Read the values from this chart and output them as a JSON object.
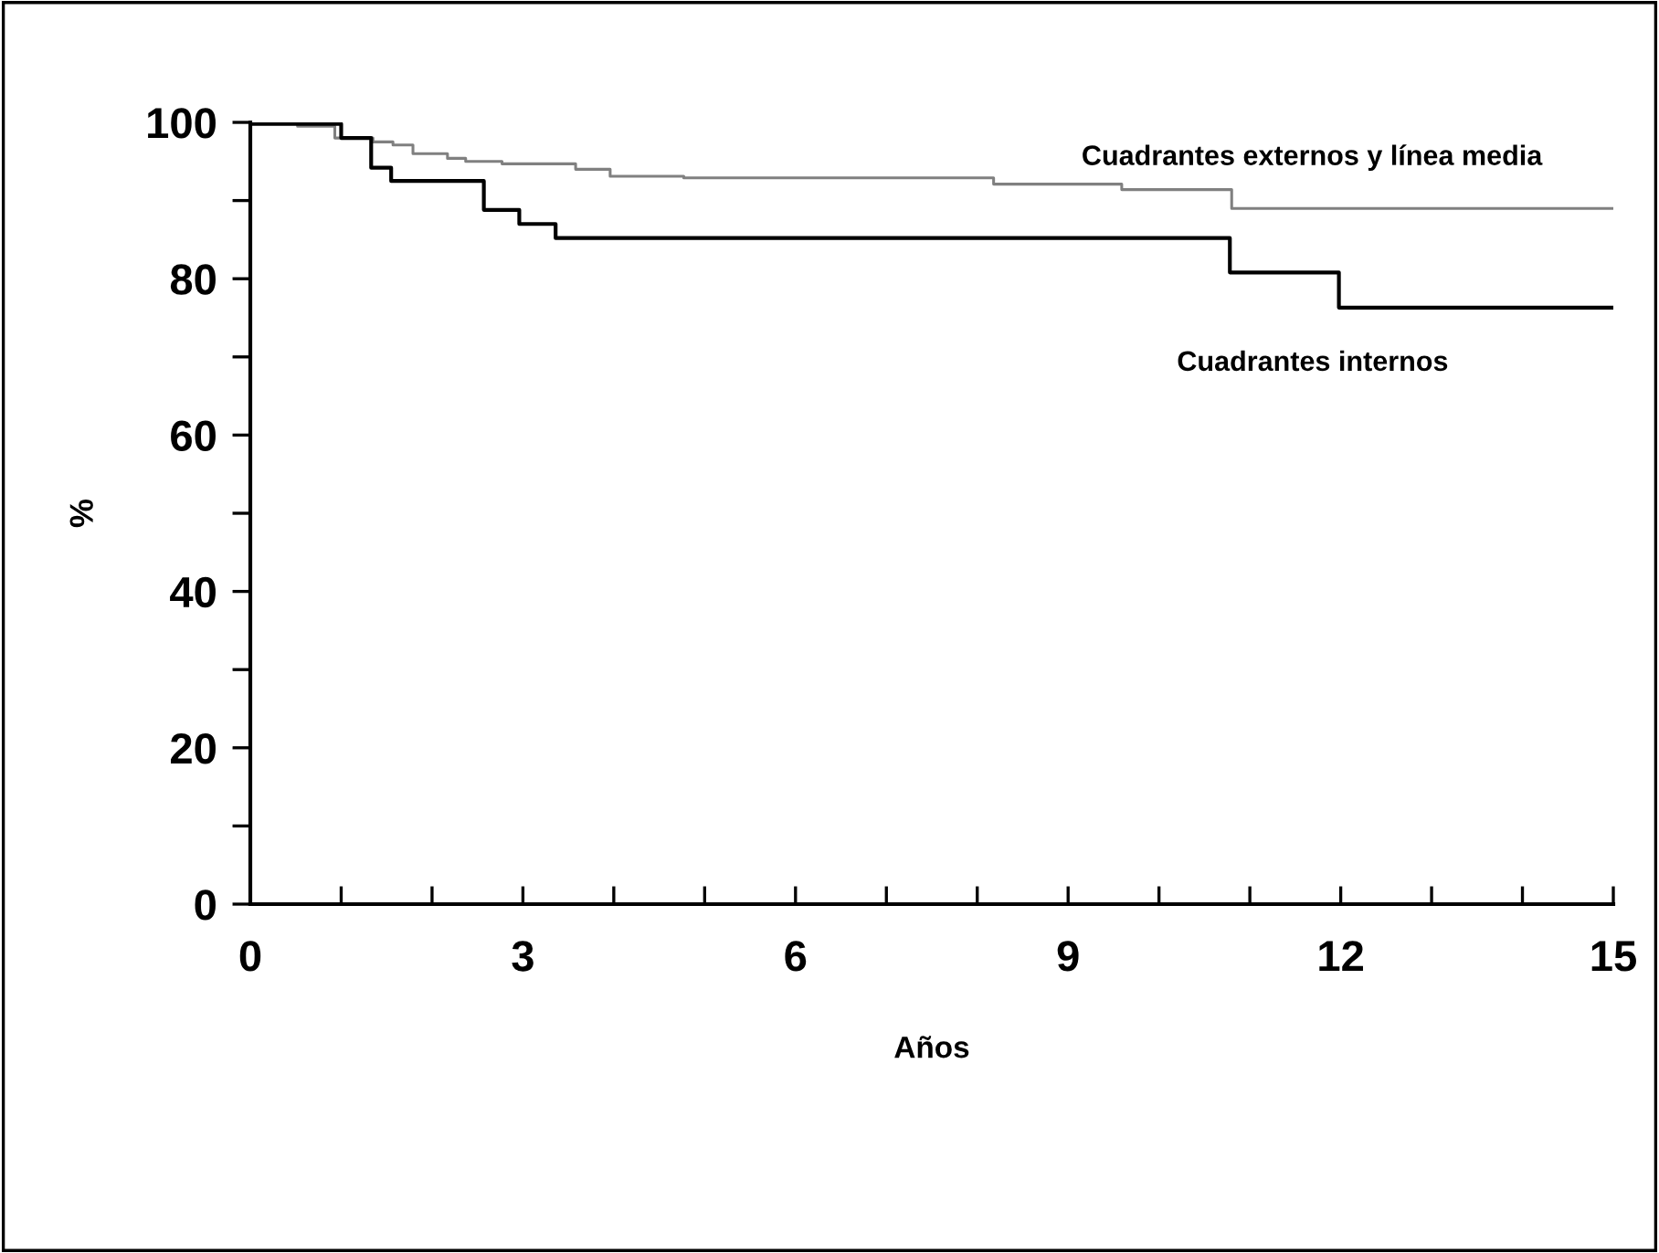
{
  "chart_data": {
    "type": "step",
    "xlabel": "Años",
    "ylabel": "%",
    "xlim": [
      0,
      15
    ],
    "ylim": [
      0,
      100
    ],
    "xticks": [
      0,
      {
        "value": 1,
        "label": null
      },
      {
        "value": 2,
        "label": null
      },
      3,
      {
        "value": 4,
        "label": null
      },
      {
        "value": 5,
        "label": null
      },
      6,
      {
        "value": 7,
        "label": null
      },
      {
        "value": 8,
        "label": null
      },
      9,
      {
        "value": 10,
        "label": null
      },
      {
        "value": 11,
        "label": null
      },
      12,
      {
        "value": 13,
        "label": null
      },
      {
        "value": 14,
        "label": null
      },
      15
    ],
    "yticks": [
      0,
      {
        "value": 10,
        "label": null
      },
      20,
      {
        "value": 30,
        "label": null
      },
      40,
      {
        "value": 50,
        "label": null
      },
      60,
      {
        "value": 70,
        "label": null
      },
      80,
      {
        "value": 90,
        "label": null
      },
      100
    ],
    "grid": false,
    "legend": false,
    "marker": "none",
    "line_style": "solid",
    "series": [
      {
        "name": "Cuadrantes externos y línea media",
        "color": "#808080",
        "x": [
          0,
          0.52,
          0.93,
          1.35,
          1.57,
          1.79,
          2.17,
          2.37,
          2.77,
          3.58,
          3.96,
          4.77,
          8.18,
          9.59,
          10.8,
          15
        ],
        "values": [
          100,
          99.5,
          98,
          97.5,
          97.1,
          96,
          95.4,
          95,
          94.7,
          94,
          93.1,
          92.9,
          92.1,
          91.4,
          89,
          89
        ]
      },
      {
        "name": "Cuadrantes internos",
        "color": "#000000",
        "x": [
          0,
          0.76,
          1.0,
          1.33,
          1.55,
          2.57,
          2.96,
          3.36,
          10.78,
          11.98,
          15
        ],
        "values": [
          99.8,
          99.8,
          98,
          94.2,
          92.5,
          88.8,
          87,
          85.2,
          80.8,
          76.3,
          76.3
        ]
      }
    ]
  }
}
